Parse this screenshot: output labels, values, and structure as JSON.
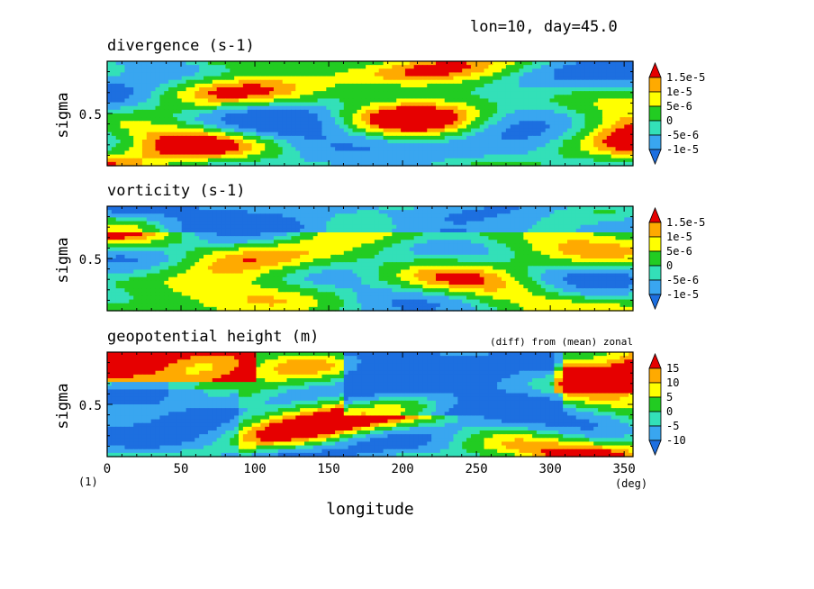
{
  "header": {
    "info": "lon=10, day=45.0"
  },
  "chart_data": {
    "type": "heatmap",
    "xlabel": "longitude",
    "x_unit": "(deg)",
    "page_label": "(1)",
    "xlim": [
      0,
      356
    ],
    "x_ticks": [
      0,
      50,
      100,
      150,
      200,
      250,
      300,
      350
    ],
    "panels": [
      {
        "title": "divergence (s-1)",
        "subtitle": "",
        "ylabel": "sigma",
        "ylim": [
          0.0,
          1.0
        ],
        "y_ticks": [
          0.5
        ],
        "levels": [
          "1.5e-5",
          "1e-5",
          "5e-6",
          "0",
          "-5e-6",
          "-1e-5"
        ],
        "field_range": [
          -1.5e-05,
          1.5e-05
        ]
      },
      {
        "title": "vorticity (s-1)",
        "subtitle": "",
        "ylabel": "sigma",
        "ylim": [
          0.0,
          1.0
        ],
        "y_ticks": [
          0.5
        ],
        "levels": [
          "1.5e-5",
          "1e-5",
          "5e-6",
          "0",
          "-5e-6",
          "-1e-5"
        ],
        "field_range": [
          -1.5e-05,
          1.5e-05
        ]
      },
      {
        "title": "geopotential height (m)",
        "subtitle": "(diff) from (mean) zonal",
        "ylabel": "sigma",
        "ylim": [
          0.0,
          1.0
        ],
        "y_ticks": [
          0.5
        ],
        "levels": [
          "15",
          "10",
          "5",
          "0",
          "-5",
          "-10"
        ],
        "field_range": [
          -15,
          15
        ]
      }
    ],
    "colorbar_colors": [
      "#1d6fe0",
      "#39a6f0",
      "#33e0b8",
      "#22cc22",
      "#ffff00",
      "#ffaa00",
      "#e60000"
    ],
    "grid": false,
    "legend": "right"
  }
}
